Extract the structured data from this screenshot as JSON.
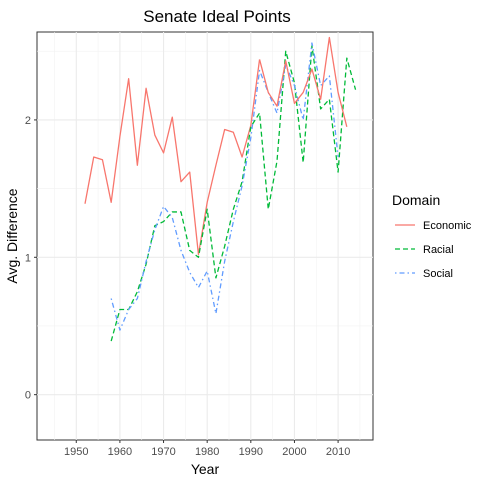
{
  "chart_data": {
    "type": "line",
    "title": "Senate Ideal Points",
    "xlabel": "Year",
    "ylabel": "Avg. Difference",
    "xlim": [
      1941,
      2018
    ],
    "ylim": [
      -0.33,
      2.64
    ],
    "x_ticks": [
      1950,
      1960,
      1970,
      1980,
      1990,
      2000,
      2010
    ],
    "y_ticks": [
      0,
      1,
      2
    ],
    "grid": true,
    "legend": {
      "title": "Domain",
      "position": "right"
    },
    "series": [
      {
        "name": "Economic",
        "color": "#F8766D",
        "dash": "solid",
        "x": [
          1952,
          1954,
          1956,
          1958,
          1960,
          1962,
          1964,
          1966,
          1968,
          1970,
          1972,
          1974,
          1976,
          1978,
          1980,
          1982,
          1984,
          1986,
          1988,
          1990,
          1992
        ],
        "values": [
          1.39,
          1.73,
          1.71,
          1.4,
          1.88,
          2.3,
          1.67,
          2.23,
          1.89,
          1.76,
          2.02,
          1.55,
          1.62,
          1.02,
          1.4,
          1.67,
          1.93,
          1.91,
          1.73,
          1.96,
          2.44
        ]
      },
      {
        "name": "Racial",
        "color": "#00BA38",
        "dash": "dashed",
        "x": [
          1958,
          1960,
          1962,
          1964,
          1966,
          1968,
          1970,
          1972,
          1974,
          1976,
          1978,
          1980,
          1982,
          1984,
          1986,
          1988,
          1990,
          1992,
          1994,
          1996,
          1998,
          2000,
          2002,
          2004,
          2006,
          2008,
          2010,
          2012,
          2014
        ],
        "values": [
          0.39,
          0.62,
          0.62,
          0.75,
          0.95,
          1.23,
          1.26,
          1.33,
          1.33,
          1.05,
          1.0,
          1.35,
          0.85,
          1.08,
          1.35,
          1.55,
          1.95,
          2.05,
          1.35,
          1.7,
          2.5,
          2.27,
          1.69,
          2.54,
          2.08,
          2.15,
          1.62,
          2.45,
          2.22
        ]
      },
      {
        "name": "Social",
        "color": "#619CFF",
        "dash": "dotdash",
        "x": [
          1958,
          1960,
          1962,
          1964,
          1966,
          1968,
          1970,
          1972,
          1974,
          1976,
          1978,
          1980,
          1982,
          1984,
          1986,
          1988,
          1990,
          1992,
          1994,
          1996,
          1998,
          2000,
          2002,
          2004,
          2006,
          2008,
          2010
        ],
        "values": [
          0.7,
          0.47,
          0.62,
          0.7,
          0.97,
          1.2,
          1.37,
          1.29,
          1.05,
          0.89,
          0.78,
          0.9,
          0.59,
          0.97,
          1.26,
          1.52,
          1.87,
          2.36,
          2.2,
          2.05,
          2.4,
          2.25,
          2.0,
          2.56,
          2.25,
          2.32,
          1.73
        ]
      },
      {
        "name": "Economic",
        "color": "#F8766D",
        "dash": "solid",
        "part": "continuation",
        "x": [
          1992,
          1994,
          1996,
          1998,
          2000,
          2002,
          2004,
          2006,
          2008,
          2010,
          2012
        ],
        "values": [
          2.44,
          2.2,
          2.1,
          2.43,
          2.12,
          2.2,
          2.37,
          2.15,
          2.6,
          2.2,
          1.95
        ]
      }
    ]
  }
}
